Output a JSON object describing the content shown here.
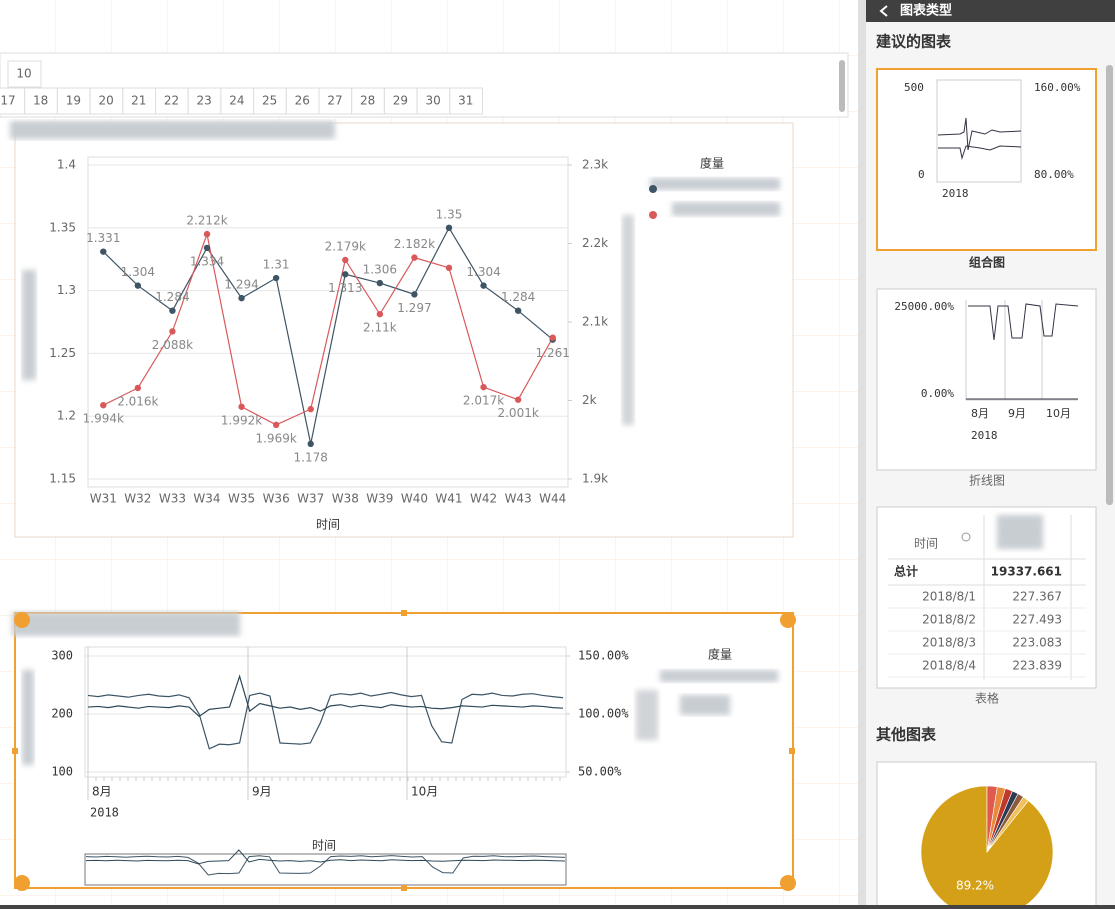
{
  "calendar": {
    "row1": [
      "10"
    ],
    "row2": [
      "17",
      "18",
      "19",
      "20",
      "21",
      "22",
      "23",
      "24",
      "25",
      "26",
      "27",
      "28",
      "29",
      "30",
      "31"
    ]
  },
  "chart_data": [
    {
      "type": "combo",
      "categories": [
        "W31",
        "W32",
        "W33",
        "W34",
        "W35",
        "W36",
        "W37",
        "W38",
        "W39",
        "W40",
        "W41",
        "W42",
        "W43",
        "W44"
      ],
      "x_label": "时间",
      "legend_title": "度量",
      "ylim": [
        1.15,
        1.4
      ],
      "yticks": [
        1.15,
        1.2,
        1.25,
        1.3,
        1.35,
        1.4
      ],
      "y2lim": [
        1900,
        2300
      ],
      "y2ticks": [
        {
          "value": 1900,
          "label": "1.9k"
        },
        {
          "value": 2000,
          "label": "2k"
        },
        {
          "value": 2100,
          "label": "2.1k"
        },
        {
          "value": 2200,
          "label": "2.2k"
        },
        {
          "value": 2300,
          "label": "2.3k"
        }
      ],
      "grid": true,
      "series": [
        {
          "color": "#3e5566",
          "values": [
            1.331,
            1.304,
            1.284,
            1.334,
            1.294,
            1.31,
            1.178,
            1.313,
            1.306,
            1.297,
            1.35,
            1.304,
            1.284,
            1.261
          ]
        },
        {
          "color": "#d9595b",
          "axis": "y2",
          "values": [
            1994,
            2016,
            2088,
            2212,
            1992,
            1969,
            1989,
            2179,
            2110,
            2182,
            2169,
            2017,
            2001,
            2080
          ],
          "value_labels": [
            "1.994k",
            "2.016k",
            "2.088k",
            "2.212k",
            "1.992k",
            "1.969k",
            null,
            "2.179k",
            "2.11k",
            "2.182k",
            null,
            "2.017k",
            "2.001k",
            null
          ]
        }
      ]
    },
    {
      "type": "line",
      "x_labels": [
        "8月",
        "9月",
        "10月"
      ],
      "year": "2018",
      "x_label": "时间",
      "legend_title": "度量",
      "ylim": [
        100,
        300
      ],
      "yticks": [
        100,
        200,
        300
      ],
      "y2lim": [
        50,
        150
      ],
      "y2ticks": [
        {
          "value": 50,
          "label": "50.00%"
        },
        {
          "value": 100,
          "label": "100.00%"
        },
        {
          "value": 150,
          "label": "150.00%"
        }
      ],
      "series": [
        {
          "color": "#3e5566",
          "values": [
            232,
            230,
            233,
            231,
            229,
            232,
            234,
            231,
            230,
            233,
            228,
            200,
            140,
            148,
            147,
            150,
            232,
            236,
            231,
            150,
            149,
            148,
            150,
            185,
            232,
            235,
            233,
            236,
            231,
            234,
            237,
            233,
            230,
            232,
            180,
            152,
            150,
            225,
            234,
            233,
            236,
            232,
            231,
            234,
            235,
            232,
            230,
            228
          ]
        },
        {
          "color": "#2f4858",
          "values": [
            212,
            213,
            211,
            214,
            212,
            210,
            213,
            212,
            211,
            214,
            212,
            196,
            208,
            210,
            212,
            265,
            205,
            218,
            214,
            210,
            212,
            208,
            211,
            205,
            214,
            216,
            212,
            215,
            213,
            211,
            216,
            214,
            212,
            213,
            210,
            209,
            211,
            214,
            213,
            212,
            215,
            214,
            213,
            212,
            214,
            213,
            211,
            210
          ]
        }
      ]
    },
    {
      "type": "pie",
      "values": [
        89.2,
        2.5,
        2,
        1.8,
        1.5,
        1.5,
        1.5
      ],
      "value_labels": [
        "89.2%",
        null,
        null,
        null,
        null,
        null,
        null
      ],
      "colors": [
        "#d4a017",
        "#e05a4f",
        "#e88a3a",
        "#c0392b",
        "#2e3b55",
        "#8e5a3c",
        "#f0c05a"
      ]
    }
  ],
  "panel": {
    "header": "图表类型",
    "suggested": "建议的图表",
    "other": "其他图表",
    "combo": {
      "name": "组合图",
      "y_top": "500",
      "y_bottom": "0",
      "y2_top": "160.00%",
      "y2_bottom": "80.00%",
      "year": "2018"
    },
    "line": {
      "name": "折线图",
      "y_top": "25000.00%",
      "y_bottom": "0.00%",
      "months": [
        "8月",
        "9月",
        "10月"
      ],
      "year": "2018"
    },
    "table": {
      "name": "表格",
      "header": "时间",
      "total_label": "总计",
      "total": "19337.661",
      "rows": [
        [
          "2018/8/1",
          "227.367"
        ],
        [
          "2018/8/2",
          "227.493"
        ],
        [
          "2018/8/3",
          "223.083"
        ],
        [
          "2018/8/4",
          "223.839"
        ]
      ]
    }
  }
}
